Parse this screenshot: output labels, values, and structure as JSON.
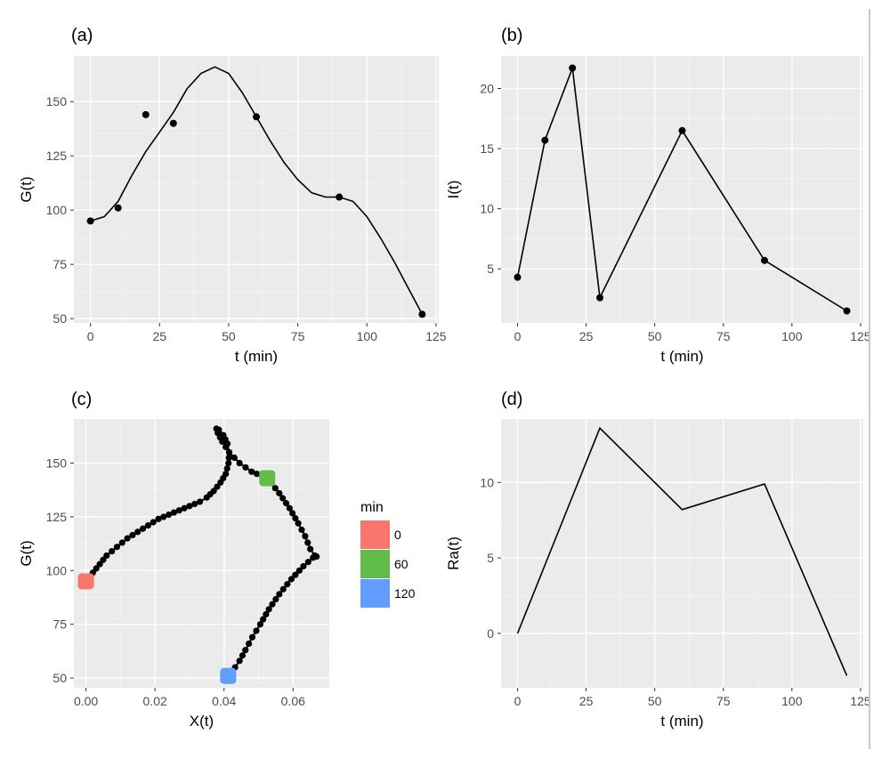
{
  "chart_data": [
    {
      "panel": "(a)",
      "type": "scatter",
      "xlabel": "t (min)",
      "ylabel": "G(t)",
      "xlim": [
        -6,
        126
      ],
      "ylim": [
        48,
        171
      ],
      "xticks": [
        0,
        25,
        50,
        75,
        100,
        125
      ],
      "yticks": [
        50,
        75,
        100,
        125,
        150
      ],
      "points": {
        "x": [
          0,
          10,
          20,
          30,
          60,
          90,
          120
        ],
        "y": [
          95,
          101,
          144,
          140,
          143,
          106,
          52
        ]
      },
      "smooth_line": {
        "x": [
          0,
          5,
          10,
          15,
          20,
          25,
          30,
          35,
          40,
          45,
          50,
          55,
          60,
          65,
          70,
          75,
          80,
          85,
          90,
          95,
          100,
          105,
          110,
          115,
          120
        ],
        "y": [
          95,
          97,
          104,
          116,
          127,
          136,
          145,
          156,
          163,
          166,
          163,
          154,
          143,
          132,
          122,
          114,
          108,
          106,
          106,
          104,
          97,
          87,
          76,
          64,
          52
        ]
      },
      "grid": true
    },
    {
      "panel": "(b)",
      "type": "line",
      "xlabel": "t (min)",
      "ylabel": "I(t)",
      "xlim": [
        -6,
        126
      ],
      "ylim": [
        0.5,
        22.7
      ],
      "xticks": [
        0,
        25,
        50,
        75,
        100,
        125
      ],
      "yticks": [
        5,
        10,
        15,
        20
      ],
      "x": [
        0,
        10,
        20,
        30,
        60,
        90,
        120
      ],
      "y": [
        4.3,
        15.7,
        21.7,
        2.6,
        16.5,
        5.7,
        1.5
      ],
      "markers": true,
      "grid": true
    },
    {
      "panel": "(c)",
      "type": "scatter",
      "xlabel": "X(t)",
      "ylabel": "G(t)",
      "xlim": [
        -0.0035,
        0.0705
      ],
      "ylim": [
        45.5,
        170.5
      ],
      "xticks": [
        0.0,
        0.02,
        0.04,
        0.06
      ],
      "xtick_labels": [
        "0.00",
        "0.02",
        "0.04",
        "0.06"
      ],
      "yticks": [
        50,
        75,
        100,
        125,
        150
      ],
      "trajectory": {
        "x": [
          0.0,
          0.002,
          0.004,
          0.006,
          0.009,
          0.012,
          0.015,
          0.018,
          0.021,
          0.024,
          0.027,
          0.03,
          0.033,
          0.035,
          0.037,
          0.039,
          0.0405,
          0.0413,
          0.0415,
          0.041,
          0.0398,
          0.0385,
          0.0378,
          0.0382,
          0.0395,
          0.0415,
          0.0445,
          0.048,
          0.0525,
          0.056,
          0.059,
          0.0615,
          0.0635,
          0.065,
          0.0663,
          0.0668,
          0.0658,
          0.063,
          0.0595,
          0.056,
          0.053,
          0.0505,
          0.0482,
          0.0462,
          0.0445,
          0.0432,
          0.0422,
          0.0412
        ],
        "y": [
          95,
          99,
          103,
          107,
          111,
          115,
          118,
          121,
          124,
          126,
          128,
          130,
          132,
          134,
          137,
          141,
          145,
          150,
          155,
          159,
          163,
          165.5,
          166,
          164,
          160,
          155,
          150,
          146,
          143,
          136,
          129,
          122,
          116,
          110,
          107,
          106.5,
          106,
          102,
          96,
          89,
          82,
          75,
          69,
          63,
          58,
          55,
          52.5,
          51
        ]
      },
      "highlights": [
        {
          "min": "0",
          "x": 0.0,
          "y": 95
        },
        {
          "min": "60",
          "x": 0.0525,
          "y": 143
        },
        {
          "min": "120",
          "x": 0.0412,
          "y": 51
        }
      ],
      "legend": {
        "title": "min",
        "placement": "right",
        "entries": [
          {
            "label": "0",
            "color": "#f8766d"
          },
          {
            "label": "60",
            "color": "#61bc49"
          },
          {
            "label": "120",
            "color": "#619cff"
          }
        ]
      },
      "grid": true
    },
    {
      "panel": "(d)",
      "type": "line",
      "xlabel": "t (min)",
      "ylabel": "Ra(t)",
      "xlim": [
        -6,
        126
      ],
      "ylim": [
        -3.6,
        14.2
      ],
      "xticks": [
        0,
        25,
        50,
        75,
        100,
        125
      ],
      "yticks": [
        0,
        5,
        10
      ],
      "x": [
        0,
        30,
        60,
        90,
        120
      ],
      "y": [
        0,
        13.6,
        8.2,
        9.9,
        -2.8
      ],
      "markers": false,
      "grid": true
    }
  ],
  "colors": {
    "panel_background": "#ebebeb",
    "grid": "#ffffff",
    "data": "#000000",
    "tick_text": "#4d4d4d"
  }
}
